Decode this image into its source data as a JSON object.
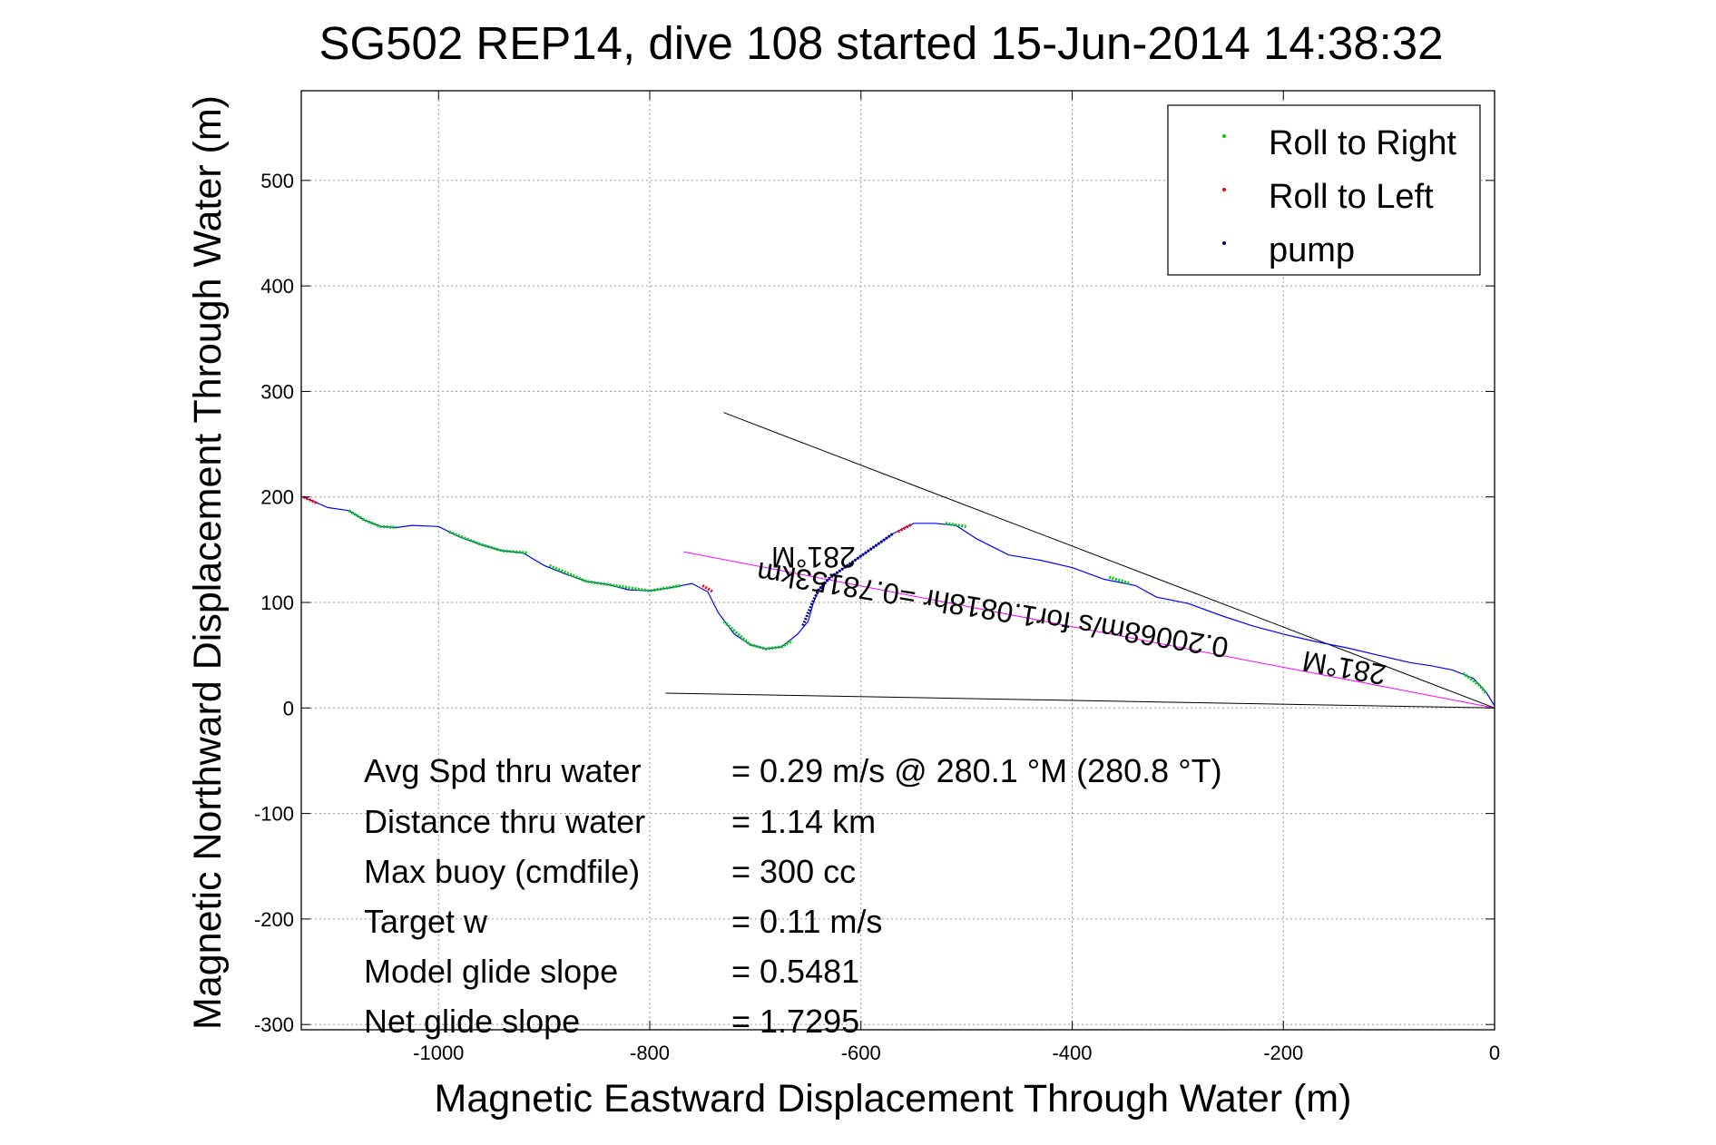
{
  "chart_data": {
    "type": "line",
    "title": "SG502 REP14, dive 108 started 15-Jun-2014 14:38:32",
    "xlabel": "Magnetic Eastward Displacement Through Water (m)",
    "ylabel": "Magnetic Northward Displacement Through Water (m)",
    "xlim": [
      -1130,
      0
    ],
    "ylim": [
      -305,
      585
    ],
    "x_ticks": [
      -1000,
      -800,
      -600,
      -400,
      -200,
      0
    ],
    "x_tick_labels": [
      "-1000",
      "-800",
      "-600",
      "-400",
      "-200",
      "0"
    ],
    "y_ticks": [
      -300,
      -200,
      -100,
      0,
      100,
      200,
      300,
      400,
      500
    ],
    "y_tick_labels": [
      "-300",
      "-200",
      "-100",
      "0",
      "100",
      "200",
      "300",
      "400",
      "500"
    ],
    "grid": true,
    "legend_placement": "top-right",
    "legend": [
      {
        "label": "Roll to Right",
        "color": "#00cc00"
      },
      {
        "label": "Roll to Left",
        "color": "#ff0000"
      },
      {
        "label": "pump",
        "color": "#000080"
      }
    ],
    "series": [
      {
        "color": "#0000ff",
        "x": [
          -1128,
          -1105,
          -1085,
          -1070,
          -1055,
          -1040,
          -1025,
          -1000,
          -980,
          -960,
          -940,
          -920,
          -900,
          -880,
          -860,
          -840,
          -820,
          -800,
          -780,
          -760,
          -745,
          -735,
          -720,
          -705,
          -690,
          -675,
          -660,
          -650,
          -645,
          -640,
          -630,
          -610,
          -590,
          -570,
          -550,
          -530,
          -510,
          -490,
          -460,
          -430,
          -400,
          -370,
          -340,
          -320,
          -290,
          -260,
          -230,
          -200,
          -170,
          -140,
          -110,
          -80,
          -60,
          -40,
          -20,
          -8,
          0
        ],
        "y": [
          200,
          190,
          187,
          178,
          172,
          171,
          173,
          172,
          162,
          155,
          149,
          147,
          135,
          127,
          120,
          117,
          112,
          111,
          114,
          118,
          110,
          90,
          70,
          60,
          56,
          58,
          70,
          82,
          100,
          112,
          123,
          137,
          151,
          165,
          175,
          175,
          173,
          160,
          145,
          140,
          133,
          122,
          116,
          105,
          99,
          88,
          78,
          70,
          63,
          57,
          50,
          43,
          40,
          36,
          28,
          15,
          2
        ]
      }
    ],
    "roll_right_segments": [
      {
        "x": [
          -1085,
          -1070,
          -1055,
          -1040
        ],
        "y": [
          187,
          178,
          172,
          171
        ]
      },
      {
        "x": [
          -990,
          -960,
          -940,
          -915
        ],
        "y": [
          167,
          155,
          149,
          147
        ]
      },
      {
        "x": [
          -895,
          -860,
          -840,
          -800,
          -770
        ],
        "y": [
          135,
          120,
          117,
          111,
          116
        ]
      },
      {
        "x": [
          -730,
          -705,
          -690,
          -675,
          -665
        ],
        "y": [
          82,
          60,
          56,
          58,
          64
        ]
      },
      {
        "x": [
          -520,
          -500
        ],
        "y": [
          175,
          172
        ]
      },
      {
        "x": [
          -365,
          -345
        ],
        "y": [
          124,
          118
        ]
      },
      {
        "x": [
          -30,
          -15,
          -8
        ],
        "y": [
          33,
          22,
          14
        ]
      }
    ],
    "roll_left_segments": [
      {
        "x": [
          -1128,
          -1115
        ],
        "y": [
          200,
          194
        ]
      },
      {
        "x": [
          -750,
          -740
        ],
        "y": [
          116,
          110
        ]
      },
      {
        "x": [
          -565,
          -552
        ],
        "y": [
          167,
          174
        ]
      }
    ],
    "pump_segments": [
      {
        "x": [
          -655,
          -650,
          -645,
          -640,
          -630,
          -610,
          -590,
          -570
        ],
        "y": [
          78,
          90,
          102,
          112,
          123,
          137,
          151,
          165
        ]
      }
    ],
    "reference_lines": [
      {
        "color": "#000000",
        "x": [
          -730,
          0
        ],
        "y": [
          280,
          0
        ]
      },
      {
        "color": "#000000",
        "x": [
          -785,
          0
        ],
        "y": [
          14,
          0
        ]
      },
      {
        "color": "#ff00ff",
        "x": [
          -768,
          0
        ],
        "y": [
          148,
          0
        ]
      }
    ],
    "annotations": [
      {
        "text": "281°M",
        "x": -645,
        "y": 145,
        "rotation": 180
      },
      {
        "text": "0.20068m/s for1.0818hr =0.78153km",
        "x": -475,
        "y": 95,
        "rotation": 189.2
      },
      {
        "text": "281°M",
        "x": -142,
        "y": 40,
        "rotation": 190
      }
    ]
  },
  "stats": {
    "rows": [
      {
        "label": "Avg Spd thru water",
        "value": "=  0.29 m/s @ 280.1 °M (280.8 °T)"
      },
      {
        "label": "Distance thru water",
        "value": "=  1.14 km"
      },
      {
        "label": "Max buoy (cmdfile)",
        "value": "= 300 cc"
      },
      {
        "label": "Target w",
        "value": "= 0.11 m/s"
      },
      {
        "label": "Model glide slope",
        "value": "= 0.5481"
      },
      {
        "label": "Net glide slope",
        "value": "= 1.7295"
      }
    ]
  }
}
